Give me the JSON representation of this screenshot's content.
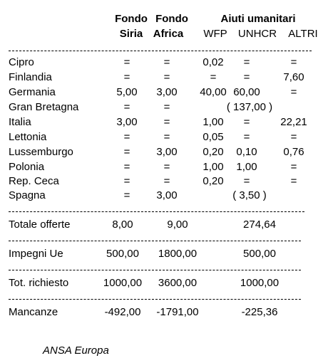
{
  "header": {
    "col1_line1": "Fondo",
    "col1_line2": "Siria",
    "col2_line1": "Fondo",
    "col2_line2": "Africa",
    "group_title": "Aiuti umanitari",
    "sub1": "WFP",
    "sub2": "UNHCR",
    "sub3": "ALTRI"
  },
  "rows": [
    {
      "label": "Cipro",
      "siria": "=",
      "africa": "=",
      "wfp": "0,02",
      "unhcr": "=",
      "altri": "="
    },
    {
      "label": "Finlandia",
      "siria": "=",
      "africa": "=",
      "wfp": "=",
      "unhcr": "=",
      "altri": "7,60"
    },
    {
      "label": "Germania",
      "siria": "5,00",
      "africa": "3,00",
      "wfp": "40,00",
      "unhcr": "60,00",
      "altri": "="
    },
    {
      "label": "Gran Bretagna",
      "siria": "=",
      "africa": "=",
      "span": "( 137,00 )"
    },
    {
      "label": "Italia",
      "siria": "3,00",
      "africa": "=",
      "wfp": "1,00",
      "unhcr": "=",
      "altri": "22,21"
    },
    {
      "label": "Lettonia",
      "siria": "=",
      "africa": "=",
      "wfp": "0,05",
      "unhcr": "=",
      "altri": "="
    },
    {
      "label": "Lussemburgo",
      "siria": "=",
      "africa": "3,00",
      "wfp": "0,20",
      "unhcr": "0,10",
      "altri": "0,76"
    },
    {
      "label": "Polonia",
      "siria": "=",
      "africa": "=",
      "wfp": "1,00",
      "unhcr": "1,00",
      "altri": "="
    },
    {
      "label": "Rep. Ceca",
      "siria": "=",
      "africa": "=",
      "wfp": "0,20",
      "unhcr": "=",
      "altri": "="
    },
    {
      "label": "Spagna",
      "siria": "=",
      "africa": "3,00",
      "span": "( 3,50 )"
    }
  ],
  "totals": [
    {
      "label": "Totale offerte",
      "siria": "8,00",
      "africa": "9,00",
      "aiuti": "274,64"
    },
    {
      "label": "Impegni Ue",
      "siria": "500,00",
      "africa": "1800,00",
      "aiuti": "500,00"
    },
    {
      "label": "Tot. richiesto",
      "siria": "1000,00",
      "africa": "3600,00",
      "aiuti": "1000,00"
    },
    {
      "label": "Mancanze",
      "siria": "-492,00",
      "africa": "-1791,00",
      "aiuti": "-225,36"
    }
  ],
  "source": "ANSA Europa"
}
